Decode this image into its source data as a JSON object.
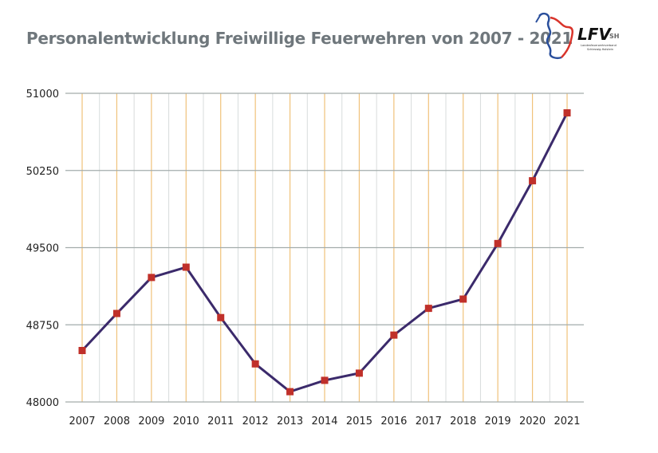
{
  "title": "Personalentwicklung Freiwillige Feuerwehren von 2007 - 2021",
  "logo": {
    "text": "LFV",
    "suffix": "SH",
    "subtitle": "Landesfeuerwehrverband Schleswig-Holstein"
  },
  "colors": {
    "line": "#3b2a6b",
    "marker": "#c0302a",
    "year_grid": "#f0c27a",
    "minor_grid": "#d8dcdc",
    "h_grid": "#a3acab",
    "title": "#6f777c"
  },
  "chart_data": {
    "type": "line",
    "title": "Personalentwicklung Freiwillige Feuerwehren von 2007 - 2021",
    "xlabel": "",
    "ylabel": "",
    "categories": [
      "2007",
      "2008",
      "2009",
      "2010",
      "2011",
      "2012",
      "2013",
      "2014",
      "2015",
      "2016",
      "2017",
      "2018",
      "2019",
      "2020",
      "2021"
    ],
    "values": [
      48500,
      48860,
      49210,
      49310,
      48820,
      48370,
      48100,
      48210,
      48280,
      48650,
      48910,
      49000,
      49540,
      50150,
      50810
    ],
    "ylim": [
      48000,
      51000
    ],
    "yticks": [
      48000,
      48750,
      49500,
      50250,
      51000
    ],
    "ytick_labels": [
      "48000",
      "48750",
      "49500",
      "50250",
      "51000"
    ],
    "grid": true,
    "marker": "square"
  }
}
